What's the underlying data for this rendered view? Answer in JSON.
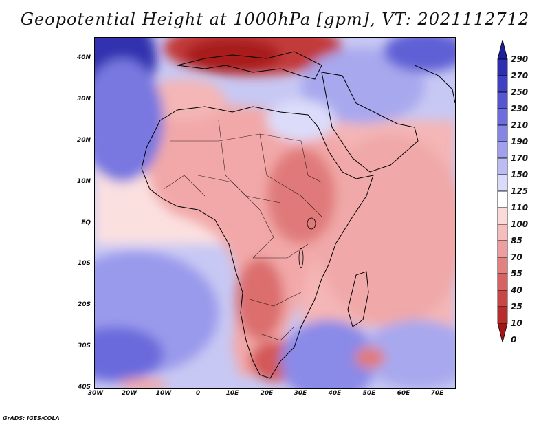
{
  "title": "Geopotential Height at 1000hPa [gpm], VT: 2021112712",
  "credit": "GrADS: IGES/COLA",
  "lat_labels": [
    "40N",
    "30N",
    "20N",
    "10N",
    "EQ",
    "10S",
    "20S",
    "30S",
    "40S"
  ],
  "lon_labels": [
    "30W",
    "20W",
    "10W",
    "0",
    "10E",
    "20E",
    "30E",
    "40E",
    "50E",
    "60E",
    "70E"
  ],
  "colorbar": {
    "labels": [
      "290",
      "270",
      "250",
      "230",
      "210",
      "190",
      "170",
      "150",
      "125",
      "110",
      "100",
      "85",
      "70",
      "55",
      "40",
      "25",
      "10",
      "0"
    ],
    "colors": [
      "#1f1f9e",
      "#2e2eb3",
      "#4040c4",
      "#5656d2",
      "#6d6dde",
      "#8585e6",
      "#a0a0ee",
      "#bcbcf4",
      "#dadafa",
      "#ffffff",
      "#fbdada",
      "#f7bcbc",
      "#ee9e9e",
      "#e38080",
      "#d66262",
      "#c84646",
      "#b82c2c",
      "#a11616"
    ]
  }
}
